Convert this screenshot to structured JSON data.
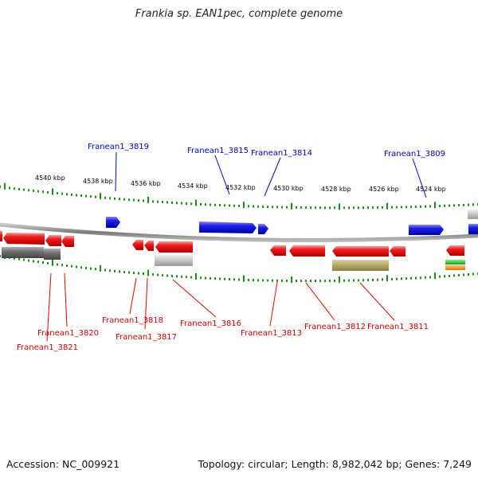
{
  "title": "Frankia sp. EAN1pec, complete genome",
  "footer": {
    "accession": "Accession: NC_009921",
    "summary": "Topology: circular; Length: 8,982,042 bp; Genes: 7,249"
  },
  "scale_labels": [
    "4540 kbp",
    "4538 kbp",
    "4536 kbp",
    "4534 kbp",
    "4532 kbp",
    "4530 kbp",
    "4528 kbp",
    "4526 kbp",
    "4524 kbp"
  ],
  "colors": {
    "forward_gene": "#1f1fe6",
    "reverse_gene": "#e61717",
    "pseudo_gene": "#6f6f6f",
    "rna_gene": "#bdbdbd",
    "olive_feature": "#b4ab6a",
    "backbone": "#8a8a8a",
    "tick": "#1a8a1a",
    "top_label": "#0000b4",
    "bottom_label": "#c80000"
  },
  "top_labels": [
    {
      "text": "Franean1_3819"
    },
    {
      "text": "Franean1_3815"
    },
    {
      "text": "Franean1_3814"
    },
    {
      "text": "Franean1_3809"
    }
  ],
  "bottom_labels": [
    {
      "text": "Franean1_3820"
    },
    {
      "text": "Franean1_3821"
    },
    {
      "text": "Franean1_3818"
    },
    {
      "text": "Franean1_3817"
    },
    {
      "text": "Franean1_3816"
    },
    {
      "text": "Franean1_3813"
    },
    {
      "text": "Franean1_3812"
    },
    {
      "text": "Franean1_3811"
    }
  ]
}
